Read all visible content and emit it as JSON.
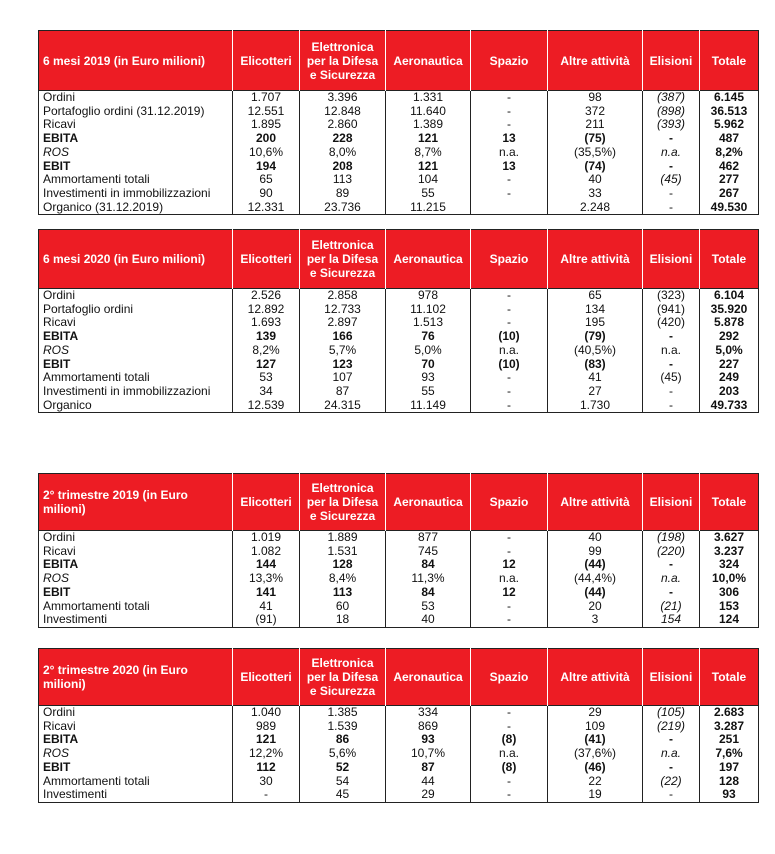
{
  "columns": [
    "Elicotteri",
    "Elettronica per la Difesa e Sicurezza",
    "Aeronautica",
    "Spazio",
    "Altre attività",
    "Elisioni",
    "Totale"
  ],
  "colors": {
    "header_bg": "#ed1c24",
    "header_text": "#ffffff"
  },
  "tables": [
    {
      "title": "6 mesi 2019 (in Euro milioni)",
      "elisioni_italic": true,
      "rows": [
        {
          "label": "Ordini",
          "style": "normal",
          "values": [
            "1.707",
            "3.396",
            "1.331",
            "-",
            "98",
            "(387)",
            "6.145"
          ]
        },
        {
          "label": "Portafoglio ordini (31.12.2019)",
          "style": "normal",
          "values": [
            "12.551",
            "12.848",
            "11.640",
            "-",
            "372",
            "(898)",
            "36.513"
          ]
        },
        {
          "label": "Ricavi",
          "style": "normal",
          "values": [
            "1.895",
            "2.860",
            "1.389",
            "-",
            "211",
            "(393)",
            "5.962"
          ]
        },
        {
          "label": "EBITA",
          "style": "bold",
          "values": [
            "200",
            "228",
            "121",
            "13",
            "(75)",
            "-",
            "487"
          ]
        },
        {
          "label": "ROS",
          "style": "italic",
          "values": [
            "10,6%",
            "8,0%",
            "8,7%",
            "n.a.",
            "(35,5%)",
            "n.a.",
            "8,2%"
          ]
        },
        {
          "label": "EBIT",
          "style": "bold",
          "values": [
            "194",
            "208",
            "121",
            "13",
            "(74)",
            "-",
            "462"
          ]
        },
        {
          "label": "Ammortamenti totali",
          "style": "normal",
          "values": [
            "65",
            "113",
            "104",
            "-",
            "40",
            "(45)",
            "277"
          ]
        },
        {
          "label": "Investimenti in immobilizzazioni",
          "style": "normal",
          "values": [
            "90",
            "89",
            "55",
            "-",
            "33",
            "-",
            "267"
          ]
        },
        {
          "label": "Organico (31.12.2019)",
          "style": "normal",
          "values": [
            "12.331",
            "23.736",
            "11.215",
            "",
            "2.248",
            "-",
            "49.530"
          ]
        }
      ]
    },
    {
      "title": "6 mesi 2020 (in Euro milioni)",
      "elisioni_italic": false,
      "rows": [
        {
          "label": "Ordini",
          "style": "normal",
          "values": [
            "2.526",
            "2.858",
            "978",
            "-",
            "65",
            "(323)",
            "6.104"
          ]
        },
        {
          "label": "Portafoglio ordini",
          "style": "normal",
          "values": [
            "12.892",
            "12.733",
            "11.102",
            "-",
            "134",
            "(941)",
            "35.920"
          ]
        },
        {
          "label": "Ricavi",
          "style": "normal",
          "values": [
            "1.693",
            "2.897",
            "1.513",
            "-",
            "195",
            "(420)",
            "5.878"
          ]
        },
        {
          "label": "EBITA",
          "style": "bold",
          "values": [
            "139",
            "166",
            "76",
            "(10)",
            "(79)",
            "-",
            "292"
          ]
        },
        {
          "label": "ROS",
          "style": "italic",
          "values": [
            "8,2%",
            "5,7%",
            "5,0%",
            "n.a.",
            "(40,5%)",
            "n.a.",
            "5,0%"
          ]
        },
        {
          "label": "EBIT",
          "style": "bold",
          "values": [
            "127",
            "123",
            "70",
            "(10)",
            "(83)",
            "-",
            "227"
          ]
        },
        {
          "label": "Ammortamenti totali",
          "style": "normal",
          "values": [
            "53",
            "107",
            "93",
            "-",
            "41",
            "(45)",
            "249"
          ]
        },
        {
          "label": "Investimenti in immobilizzazioni",
          "style": "normal",
          "values": [
            "34",
            "87",
            "55",
            "-",
            "27",
            "-",
            "203"
          ]
        },
        {
          "label": "Organico",
          "style": "normal",
          "values": [
            "12.539",
            "24.315",
            "11.149",
            "-",
            "1.730",
            "-",
            "49.733"
          ]
        }
      ]
    },
    {
      "title": "2° trimestre 2019 (in Euro milioni)",
      "elisioni_italic": true,
      "rows": [
        {
          "label": "Ordini",
          "style": "normal",
          "values": [
            "1.019",
            "1.889",
            "877",
            "-",
            "40",
            "(198)",
            "3.627"
          ]
        },
        {
          "label": "Ricavi",
          "style": "normal",
          "values": [
            "1.082",
            "1.531",
            "745",
            "-",
            "99",
            "(220)",
            "3.237"
          ]
        },
        {
          "label": "EBITA",
          "style": "bold",
          "values": [
            "144",
            "128",
            "84",
            "12",
            "(44)",
            "-",
            "324"
          ]
        },
        {
          "label": "ROS",
          "style": "italic",
          "values": [
            "13,3%",
            "8,4%",
            "11,3%",
            "n.a.",
            "(44,4%)",
            "n.a.",
            "10,0%"
          ]
        },
        {
          "label": "EBIT",
          "style": "bold",
          "values": [
            "141",
            "113",
            "84",
            "12",
            "(44)",
            "-",
            "306"
          ]
        },
        {
          "label": "Ammortamenti totali",
          "style": "normal",
          "values": [
            "41",
            "60",
            "53",
            "-",
            "20",
            "(21)",
            "153"
          ]
        },
        {
          "label": "Investimenti",
          "style": "normal",
          "values": [
            "(91)",
            "18",
            "40",
            "-",
            "3",
            "154",
            "124"
          ]
        }
      ]
    },
    {
      "title": "2° trimestre 2020 (in Euro milioni)",
      "elisioni_italic": true,
      "rows": [
        {
          "label": "Ordini",
          "style": "normal",
          "values": [
            "1.040",
            "1.385",
            "334",
            "-",
            "29",
            "(105)",
            "2.683"
          ]
        },
        {
          "label": "Ricavi",
          "style": "normal",
          "values": [
            "989",
            "1.539",
            "869",
            "-",
            "109",
            "(219)",
            "3.287"
          ]
        },
        {
          "label": "EBITA",
          "style": "bold",
          "values": [
            "121",
            "86",
            "93",
            "(8)",
            "(41)",
            "-",
            "251"
          ]
        },
        {
          "label": "ROS",
          "style": "italic",
          "values": [
            "12,2%",
            "5,6%",
            "10,7%",
            "n.a.",
            "(37,6%)",
            "n.a.",
            "7,6%"
          ]
        },
        {
          "label": "EBIT",
          "style": "bold",
          "values": [
            "112",
            "52",
            "87",
            "(8)",
            "(46)",
            "-",
            "197"
          ]
        },
        {
          "label": "Ammortamenti totali",
          "style": "normal",
          "values": [
            "30",
            "54",
            "44",
            "-",
            "22",
            "(22)",
            "128"
          ]
        },
        {
          "label": "Investimenti",
          "style": "normal",
          "values": [
            "-",
            "45",
            "29",
            "-",
            "19",
            "-",
            "93"
          ]
        }
      ]
    }
  ]
}
